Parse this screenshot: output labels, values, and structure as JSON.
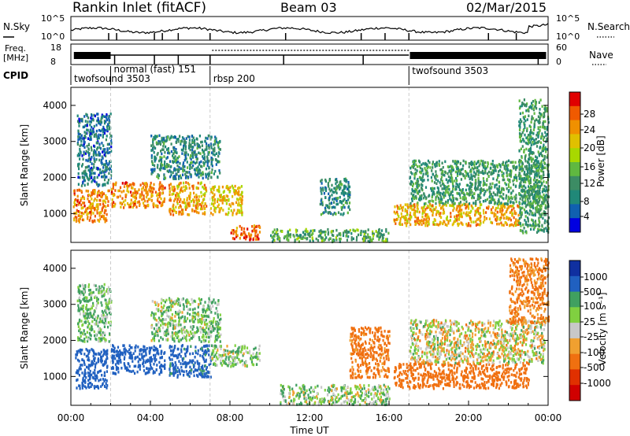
{
  "header": {
    "station": "Rankin Inlet (fitACF)",
    "beam": "Beam 03",
    "date": "02/Mar/2015"
  },
  "strips": {
    "nsky_label": "N.Sky",
    "nsky_ticks": [
      "10^5",
      "10^0"
    ],
    "nsearch_label": "N.Search",
    "nsearch_ticks": [
      "10^5",
      "10^0"
    ],
    "freq_label": "Freq.",
    "freq_unit": "[MHz]",
    "freq_ticks": [
      "18",
      "8"
    ],
    "nave_label": "Nave",
    "nave_ticks": [
      "60",
      "0"
    ],
    "cpid_label": "CPID"
  },
  "cpid_segments": [
    {
      "label": "twofsound 3503",
      "start_h": 0.0
    },
    {
      "label": "normal (fast) 151",
      "start_h": 2.0
    },
    {
      "label": "rbsp 200",
      "start_h": 7.0
    },
    {
      "label": "twofsound 3503",
      "start_h": 17.0
    }
  ],
  "axes": {
    "time_ticks": [
      "00:00",
      "04:00",
      "08:00",
      "12:00",
      "16:00",
      "20:00",
      "00:00"
    ],
    "time_values_h": [
      0,
      4,
      8,
      12,
      16,
      20,
      24
    ],
    "xlabel": "Time UT",
    "ylabel": "Slant Range [km]",
    "range_ticks": [
      "1000",
      "2000",
      "3000",
      "4000"
    ],
    "range_values": [
      1000,
      2000,
      3000,
      4000
    ],
    "ylim": [
      200,
      4500
    ],
    "xlim": [
      0,
      24
    ]
  },
  "colorbars": {
    "power": {
      "title": "Power [dB]",
      "labels": [
        "28",
        "24",
        "20",
        "16",
        "12",
        "8",
        "4"
      ],
      "colors": [
        "#e00000",
        "#f05a00",
        "#f09000",
        "#e0c000",
        "#a8d800",
        "#60b840",
        "#3c8c64",
        "#208878",
        "#1060b0",
        "#0000e0"
      ]
    },
    "velocity": {
      "title": "Velocity [m s⁻¹]",
      "labels": [
        "1000",
        "500",
        "100",
        "25",
        "-25",
        "-100",
        "-500",
        "-1000"
      ],
      "colors": [
        "#1030a0",
        "#2060c0",
        "#40a060",
        "#80d040",
        "#c8c8c8",
        "#f0a030",
        "#f07010",
        "#e03000",
        "#d00000"
      ]
    }
  },
  "chart_data": [
    {
      "type": "heatmap",
      "name": "power",
      "x_unit": "hours UT",
      "y_unit": "km",
      "ylim": [
        200,
        4500
      ],
      "xlim": [
        0,
        24
      ],
      "blobs": [
        {
          "x0": 0.1,
          "x1": 1.9,
          "y0": 800,
          "y1": 1700,
          "value": 24
        },
        {
          "x0": 2.0,
          "x1": 4.7,
          "y0": 1200,
          "y1": 1900,
          "value": 24
        },
        {
          "x0": 4.9,
          "x1": 6.8,
          "y0": 1000,
          "y1": 1900,
          "value": 22
        },
        {
          "x0": 7.0,
          "x1": 8.6,
          "y0": 1000,
          "y1": 1800,
          "value": 20
        },
        {
          "x0": 8.0,
          "x1": 9.5,
          "y0": 300,
          "y1": 700,
          "value": 26
        },
        {
          "x0": 16.2,
          "x1": 22.5,
          "y0": 700,
          "y1": 1300,
          "value": 22
        },
        {
          "x0": 17.0,
          "x1": 23.8,
          "y0": 1300,
          "y1": 2500,
          "value": 10
        },
        {
          "x0": 10.0,
          "x1": 16.0,
          "y0": 250,
          "y1": 600,
          "value": 12
        },
        {
          "x0": 12.5,
          "x1": 14.0,
          "y0": 1000,
          "y1": 2000,
          "value": 8
        },
        {
          "x0": 0.3,
          "x1": 2.0,
          "y0": 1800,
          "y1": 3800,
          "value": 6
        },
        {
          "x0": 4.0,
          "x1": 7.5,
          "y0": 2000,
          "y1": 3200,
          "value": 8
        },
        {
          "x0": 22.5,
          "x1": 24.0,
          "y0": 500,
          "y1": 4200,
          "value": 10
        }
      ]
    },
    {
      "type": "heatmap",
      "name": "velocity",
      "x_unit": "hours UT",
      "y_unit": "km",
      "ylim": [
        200,
        4500
      ],
      "xlim": [
        0,
        24
      ],
      "blobs": [
        {
          "x0": 0.2,
          "x1": 1.8,
          "y0": 700,
          "y1": 1800,
          "value": 800
        },
        {
          "x0": 2.0,
          "x1": 4.7,
          "y0": 1100,
          "y1": 1900,
          "value": 700
        },
        {
          "x0": 4.9,
          "x1": 7.0,
          "y0": 1000,
          "y1": 1900,
          "value": 600
        },
        {
          "x0": 7.0,
          "x1": 9.5,
          "y0": 1300,
          "y1": 1900,
          "value": 80
        },
        {
          "x0": 16.2,
          "x1": 23.0,
          "y0": 700,
          "y1": 1400,
          "value": -300
        },
        {
          "x0": 17.0,
          "x1": 23.8,
          "y0": 1400,
          "y1": 2600,
          "value": 0
        },
        {
          "x0": 10.5,
          "x1": 16.0,
          "y0": 250,
          "y1": 800,
          "value": 60
        },
        {
          "x0": 4.0,
          "x1": 7.5,
          "y0": 2000,
          "y1": 3200,
          "value": 80
        },
        {
          "x0": 0.3,
          "x1": 2.0,
          "y0": 2000,
          "y1": 3600,
          "value": 100
        },
        {
          "x0": 14.0,
          "x1": 16.0,
          "y0": 1000,
          "y1": 2400,
          "value": -200
        },
        {
          "x0": 22.0,
          "x1": 24.0,
          "y0": 2500,
          "y1": 4300,
          "value": -150
        }
      ]
    }
  ]
}
